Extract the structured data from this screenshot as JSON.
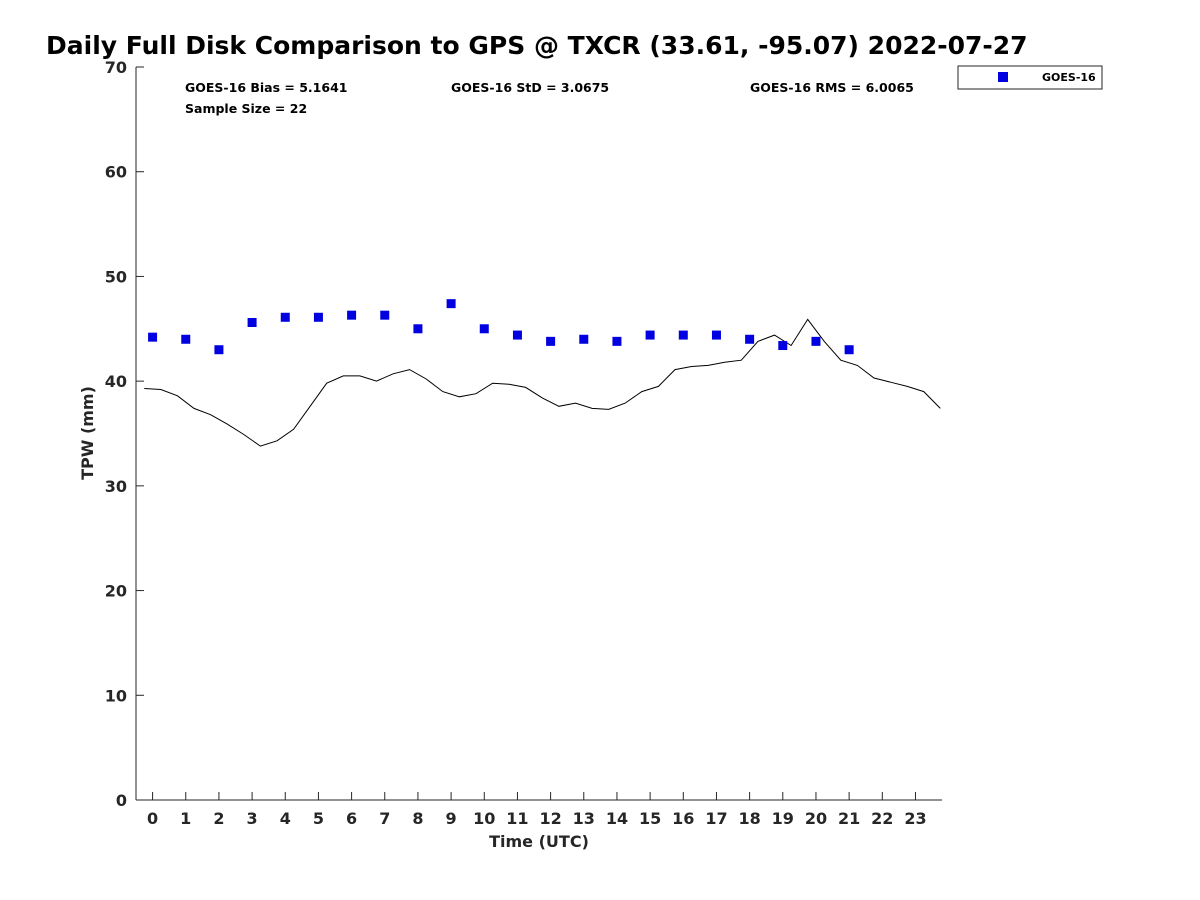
{
  "chart_data": {
    "type": "scatter",
    "title": "Daily Full Disk Comparison to GPS @ TXCR (33.61, -95.07) 2022-07-27",
    "xlabel": "Time (UTC)",
    "ylabel": "TPW (mm)",
    "xlim": [
      -0.5,
      23.8
    ],
    "ylim": [
      0,
      70
    ],
    "x_ticks": [
      "0",
      "1",
      "2",
      "3",
      "4",
      "5",
      "6",
      "7",
      "8",
      "9",
      "10",
      "11",
      "12",
      "13",
      "14",
      "15",
      "16",
      "17",
      "18",
      "19",
      "20",
      "21",
      "22",
      "23"
    ],
    "y_ticks": [
      "0",
      "10",
      "20",
      "30",
      "40",
      "50",
      "60",
      "70"
    ],
    "grid": false,
    "legend_position": "top-right",
    "stats": {
      "bias": "GOES-16 Bias = 5.1641",
      "std": "GOES-16 StD = 3.0675",
      "rms": "GOES-16 RMS = 6.0065",
      "sample": "Sample Size = 22"
    },
    "series": [
      {
        "name": "GOES-16",
        "kind": "scatter",
        "color": "#0000e0",
        "x": [
          0,
          1,
          2,
          3,
          4,
          5,
          6,
          7,
          8,
          9,
          10,
          11,
          12,
          13,
          14,
          15,
          16,
          17,
          18,
          19,
          20,
          21
        ],
        "y": [
          44.2,
          44.0,
          43.0,
          45.6,
          46.1,
          46.1,
          46.3,
          46.3,
          45.0,
          47.4,
          45.0,
          44.4,
          43.8,
          44.0,
          43.8,
          44.4,
          44.4,
          44.4,
          44.0,
          43.4,
          43.8,
          43.0
        ]
      },
      {
        "kind": "line",
        "color": "#000000",
        "x": [
          -0.25,
          0.25,
          0.75,
          1.25,
          1.75,
          2.25,
          2.75,
          3.25,
          3.75,
          4.25,
          4.75,
          5.25,
          5.75,
          6.25,
          6.75,
          7.25,
          7.75,
          8.25,
          8.75,
          9.25,
          9.75,
          10.25,
          10.75,
          11.25,
          11.75,
          12.25,
          12.75,
          13.25,
          13.75,
          14.25,
          14.75,
          15.25,
          15.75,
          16.25,
          16.75,
          17.25,
          17.75,
          18.25,
          18.75,
          19.25,
          19.75,
          20.25,
          20.75,
          21.25,
          21.75,
          22.25,
          22.75,
          23.25,
          23.75
        ],
        "y": [
          39.3,
          39.2,
          38.6,
          37.4,
          36.8,
          35.9,
          34.9,
          33.8,
          34.3,
          35.4,
          37.6,
          39.8,
          40.5,
          40.5,
          40.0,
          40.7,
          41.1,
          40.2,
          39.0,
          38.5,
          38.8,
          39.8,
          39.7,
          39.4,
          38.4,
          37.6,
          37.9,
          37.4,
          37.3,
          37.9,
          39.0,
          39.5,
          41.1,
          41.4,
          41.5,
          41.8,
          42.0,
          43.8,
          44.4,
          43.4,
          45.9,
          43.8,
          42.0,
          41.5,
          40.3,
          39.9,
          39.5,
          39.0,
          37.4
        ]
      }
    ]
  }
}
